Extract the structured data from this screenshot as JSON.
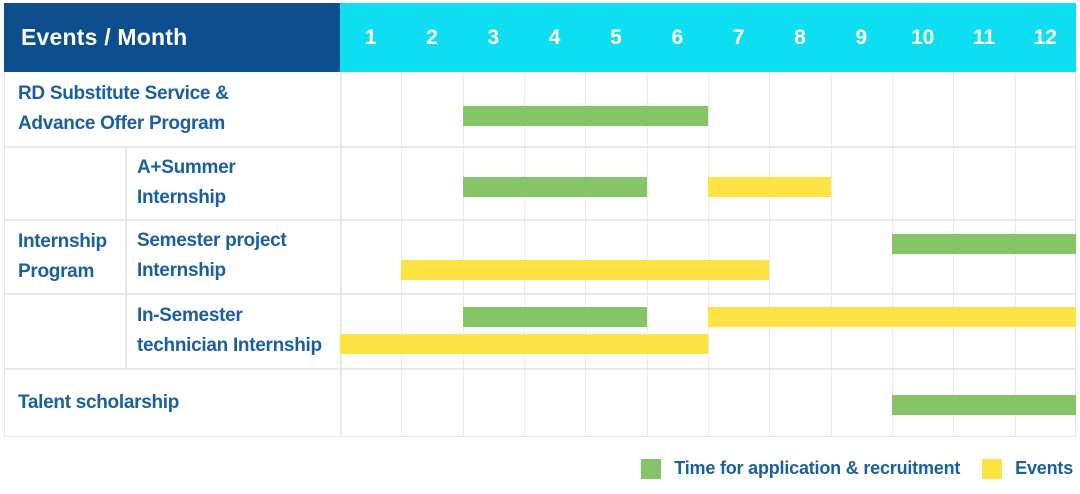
{
  "title": "Events / Month",
  "months": [
    "1",
    "2",
    "3",
    "4",
    "5",
    "6",
    "7",
    "8",
    "9",
    "10",
    "11",
    "12"
  ],
  "colors": {
    "navy": "#0d4f8e",
    "cyan": "#0edef2",
    "green": "#86c566",
    "yellow": "#fee344",
    "label_blue": "#1a5f9f"
  },
  "group": {
    "line1": "Internship",
    "line2": "Program"
  },
  "rows": [
    {
      "line1": "RD Substitute Service &",
      "line2": "Advance Offer Program",
      "bars": [
        {
          "lane": 0,
          "color": "green",
          "start": 3,
          "end": 6
        }
      ]
    },
    {
      "line1": "A+Summer",
      "line2": "Internship",
      "bars": [
        {
          "lane": 0,
          "color": "green",
          "start": 3,
          "end": 5
        },
        {
          "lane": 0,
          "color": "yellow",
          "start": 7,
          "end": 8
        }
      ]
    },
    {
      "line1": "Semester project",
      "line2": "Internship",
      "bars": [
        {
          "lane": 0,
          "color": "green",
          "start": 10,
          "end": 12
        },
        {
          "lane": 1,
          "color": "yellow",
          "start": 2,
          "end": 7
        }
      ]
    },
    {
      "line1": "In-Semester",
      "line2": "technician Internship",
      "bars": [
        {
          "lane": 0,
          "color": "green",
          "start": 3,
          "end": 5
        },
        {
          "lane": 0,
          "color": "yellow",
          "start": 7,
          "end": 12
        },
        {
          "lane": 1,
          "color": "yellow",
          "start": 1,
          "end": 6
        }
      ]
    },
    {
      "line1": "Talent scholarship",
      "line2": "",
      "bars": [
        {
          "lane": 0,
          "color": "green",
          "start": 10,
          "end": 12
        }
      ]
    }
  ],
  "legend": {
    "application": {
      "color": "green",
      "label": "Time for application & recruitment"
    },
    "events": {
      "color": "yellow",
      "label": "Events"
    }
  },
  "chart_data": {
    "type": "table",
    "subtype": "gantt",
    "title": "Events / Month",
    "x_axis": {
      "label": "Month",
      "ticks": [
        1,
        2,
        3,
        4,
        5,
        6,
        7,
        8,
        9,
        10,
        11,
        12
      ],
      "range": [
        1,
        12
      ]
    },
    "grid": true,
    "legend_position": "bottom-right",
    "legend": [
      "Time for application & recruitment",
      "Events"
    ],
    "rows": [
      {
        "event": "RD Substitute Service & Advance Offer Program",
        "group": null,
        "bars": [
          {
            "kind": "Time for application & recruitment",
            "months": [
              3,
              6
            ]
          }
        ]
      },
      {
        "event": "A+Summer Internship",
        "group": "Internship Program",
        "bars": [
          {
            "kind": "Time for application & recruitment",
            "months": [
              3,
              5
            ]
          },
          {
            "kind": "Events",
            "months": [
              7,
              8
            ]
          }
        ]
      },
      {
        "event": "Semester project Internship",
        "group": "Internship Program",
        "bars": [
          {
            "kind": "Time for application & recruitment",
            "months": [
              10,
              12
            ]
          },
          {
            "kind": "Events",
            "months": [
              2,
              7
            ]
          }
        ]
      },
      {
        "event": "In-Semester technician Internship",
        "group": "Internship Program",
        "bars": [
          {
            "kind": "Time for application & recruitment",
            "months": [
              3,
              5
            ]
          },
          {
            "kind": "Events",
            "months": [
              7,
              12
            ]
          },
          {
            "kind": "Events",
            "months": [
              1,
              6
            ]
          }
        ]
      },
      {
        "event": "Talent scholarship",
        "group": null,
        "bars": [
          {
            "kind": "Time for application & recruitment",
            "months": [
              10,
              12
            ]
          }
        ]
      }
    ]
  }
}
